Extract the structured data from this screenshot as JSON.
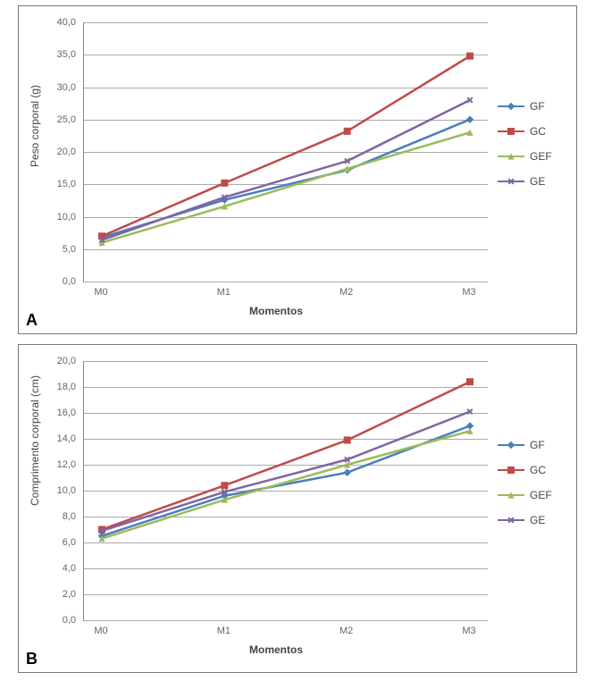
{
  "decimal_separator": ",",
  "chartA": {
    "type": "line",
    "panel_letter": "A",
    "x_axis": {
      "label": "Momentos",
      "categories": [
        "M0",
        "M1",
        "M2",
        "M3"
      ],
      "fontsize": 11,
      "label_fontsize": 12
    },
    "y_axis": {
      "label": "Peso corporal (g)",
      "min": 0,
      "max": 40,
      "step": 5,
      "label_fontsize": 12,
      "tick_fontsize": 11
    },
    "series": [
      {
        "id": "GF",
        "label": "GF",
        "color": "#4a7ebb",
        "marker": "diamond",
        "values": [
          6.8,
          12.6,
          17.2,
          25.0
        ]
      },
      {
        "id": "GC",
        "label": "GC",
        "color": "#be4b48",
        "marker": "square",
        "values": [
          7.0,
          15.2,
          23.2,
          34.8
        ]
      },
      {
        "id": "GEF",
        "label": "GEF",
        "color": "#9bbb59",
        "marker": "triangle",
        "values": [
          6.0,
          11.6,
          17.4,
          23.0
        ]
      },
      {
        "id": "GE",
        "label": "GE",
        "color": "#8064a2",
        "marker": "x",
        "values": [
          6.4,
          13.0,
          18.6,
          28.0
        ]
      }
    ],
    "grid_color": "#aaaaaa",
    "plot_bg": "#ffffff",
    "border_color": "#777777",
    "line_width": 2.5,
    "marker_size": 8
  },
  "chartB": {
    "type": "line",
    "panel_letter": "B",
    "x_axis": {
      "label": "Momentos",
      "categories": [
        "M0",
        "M1",
        "M2",
        "M3"
      ],
      "fontsize": 11,
      "label_fontsize": 12
    },
    "y_axis": {
      "label": "Comprimento  corporal (cm)",
      "min": 0,
      "max": 20,
      "step": 2,
      "label_fontsize": 12,
      "tick_fontsize": 11
    },
    "series": [
      {
        "id": "GF",
        "label": "GF",
        "color": "#4a7ebb",
        "marker": "diamond",
        "values": [
          6.5,
          9.6,
          11.4,
          15.0
        ]
      },
      {
        "id": "GC",
        "label": "GC",
        "color": "#be4b48",
        "marker": "square",
        "values": [
          7.0,
          10.4,
          13.9,
          18.4
        ]
      },
      {
        "id": "GEF",
        "label": "GEF",
        "color": "#9bbb59",
        "marker": "triangle",
        "values": [
          6.3,
          9.3,
          12.0,
          14.6
        ]
      },
      {
        "id": "GE",
        "label": "GE",
        "color": "#8064a2",
        "marker": "x",
        "values": [
          6.9,
          9.9,
          12.4,
          16.1
        ]
      }
    ],
    "grid_color": "#aaaaaa",
    "plot_bg": "#ffffff",
    "border_color": "#777777",
    "line_width": 2.5,
    "marker_size": 8
  }
}
